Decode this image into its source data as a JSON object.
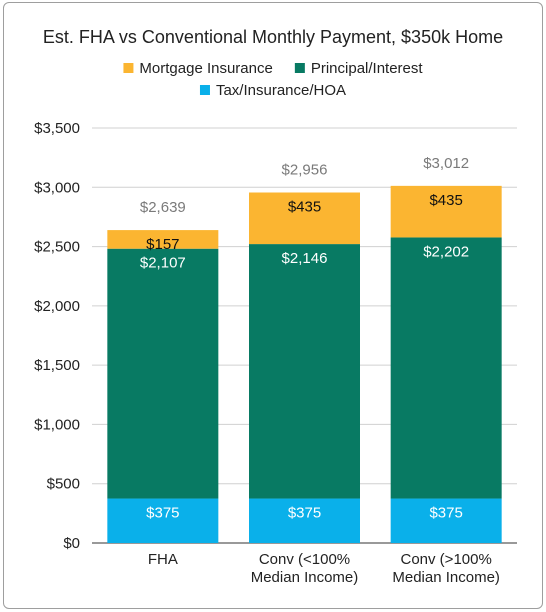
{
  "chart_data": {
    "type": "bar",
    "stacked": true,
    "title": "Est. FHA vs Conventional Monthly Payment, $350k Home",
    "categories": [
      [
        "FHA"
      ],
      [
        "Conv (<100%",
        "Median Income)"
      ],
      [
        "Conv (>100%",
        "Median Income)"
      ]
    ],
    "series": [
      {
        "name": "Tax/Insurance/HOA",
        "color": "#0ab0ea",
        "label_color": "#ffffff",
        "values": [
          375,
          375,
          375
        ],
        "labels": [
          "$375",
          "$375",
          "$375"
        ]
      },
      {
        "name": "Principal/Interest",
        "color": "#087a63",
        "label_color": "#ffffff",
        "values": [
          2107,
          2146,
          2202
        ],
        "labels": [
          "$2,107",
          "$2,146",
          "$2,202"
        ]
      },
      {
        "name": "Mortgage Insurance",
        "color": "#fbb531",
        "label_color": "#111111",
        "values": [
          157,
          435,
          435
        ],
        "labels": [
          "$157",
          "$435",
          "$435"
        ]
      }
    ],
    "totals": [
      2639,
      2956,
      3012
    ],
    "total_labels": [
      "$2,639",
      "$2,956",
      "$3,012"
    ],
    "legend": {
      "placement": "top",
      "order": [
        "Mortgage Insurance",
        "Principal/Interest",
        "Tax/Insurance/HOA"
      ]
    },
    "ylim": [
      0,
      3500
    ],
    "yticks": [
      0,
      500,
      1000,
      1500,
      2000,
      2500,
      3000,
      3500
    ],
    "ytick_labels": [
      "$0",
      "$500",
      "$1,000",
      "$1,500",
      "$2,000",
      "$2,500",
      "$3,000",
      "$3,500"
    ],
    "grid": true,
    "xlabel": "",
    "ylabel": ""
  }
}
